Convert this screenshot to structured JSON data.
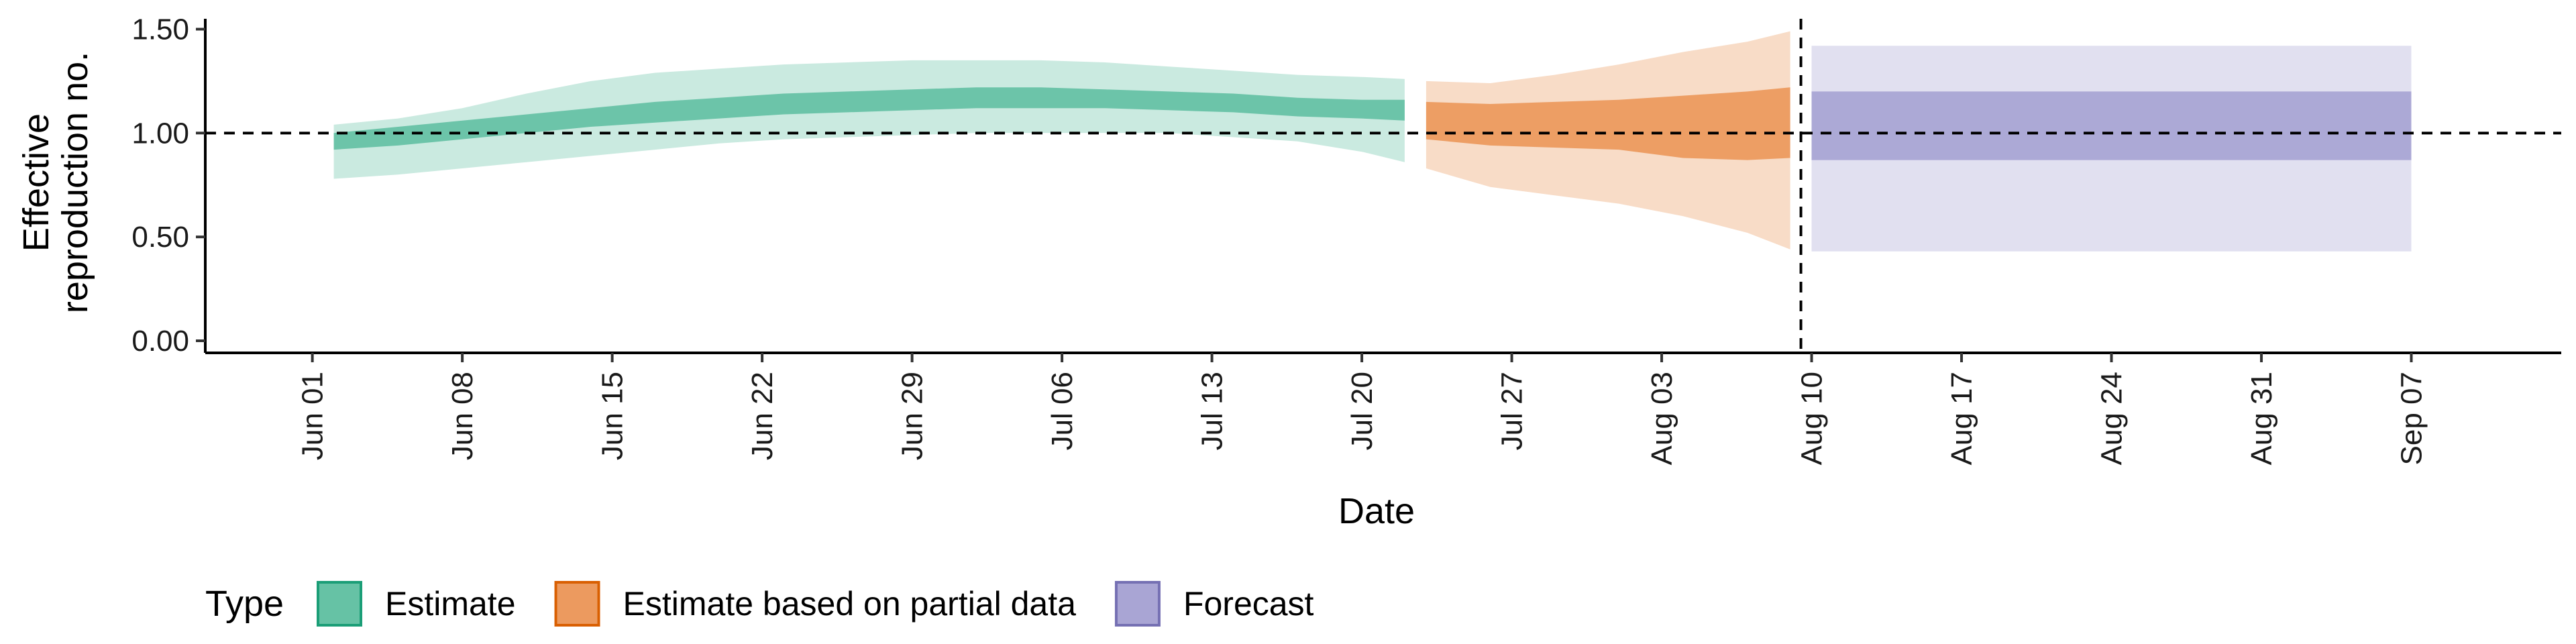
{
  "chart_data": {
    "type": "area",
    "xlabel": "Date",
    "ylabel_lines": [
      "Effective",
      "reproduction no."
    ],
    "ylim": [
      0,
      1.55
    ],
    "yticks": [
      0.0,
      0.5,
      1.0,
      1.5
    ],
    "ytick_labels": [
      "0.00",
      "0.50",
      "1.00",
      "1.50"
    ],
    "xlim": [
      "2020-05-27",
      "2020-09-14"
    ],
    "xtick_labels": [
      "Jun 01",
      "Jun 08",
      "Jun 15",
      "Jun 22",
      "Jun 29",
      "Jul 06",
      "Jul 13",
      "Jul 20",
      "Jul 27",
      "Aug 03",
      "Aug 10",
      "Aug 17",
      "Aug 24",
      "Aug 31",
      "Sep 07"
    ],
    "xtick_dates": [
      "2020-06-01",
      "2020-06-08",
      "2020-06-15",
      "2020-06-22",
      "2020-06-29",
      "2020-07-06",
      "2020-07-13",
      "2020-07-20",
      "2020-07-27",
      "2020-08-03",
      "2020-08-10",
      "2020-08-17",
      "2020-08-24",
      "2020-08-31",
      "2020-09-07"
    ],
    "reference_line": {
      "y": 1.0,
      "style": "dashed"
    },
    "forecast_divider": {
      "x": "2020-08-09",
      "style": "dashed"
    },
    "legend": {
      "title": "Type",
      "position": "bottom"
    },
    "grid": false,
    "series": [
      {
        "name": "Estimate",
        "color": "#1b9e77",
        "fill": "#66c2a5",
        "x": [
          "2020-06-02",
          "2020-06-05",
          "2020-06-08",
          "2020-06-11",
          "2020-06-14",
          "2020-06-17",
          "2020-06-20",
          "2020-06-23",
          "2020-06-26",
          "2020-06-29",
          "2020-07-02",
          "2020-07-05",
          "2020-07-08",
          "2020-07-11",
          "2020-07-14",
          "2020-07-17",
          "2020-07-20",
          "2020-07-22"
        ],
        "lower_90": [
          0.78,
          0.8,
          0.83,
          0.86,
          0.89,
          0.92,
          0.95,
          0.97,
          0.98,
          0.99,
          1.0,
          1.0,
          1.0,
          1.0,
          0.98,
          0.96,
          0.91,
          0.86
        ],
        "upper_90": [
          1.04,
          1.07,
          1.12,
          1.19,
          1.25,
          1.29,
          1.31,
          1.33,
          1.34,
          1.35,
          1.35,
          1.35,
          1.34,
          1.32,
          1.3,
          1.28,
          1.27,
          1.26
        ],
        "lower_50": [
          0.92,
          0.94,
          0.97,
          1.0,
          1.03,
          1.05,
          1.07,
          1.09,
          1.1,
          1.11,
          1.12,
          1.12,
          1.12,
          1.11,
          1.1,
          1.08,
          1.07,
          1.06
        ],
        "upper_50": [
          1.0,
          1.03,
          1.06,
          1.09,
          1.12,
          1.15,
          1.17,
          1.19,
          1.2,
          1.21,
          1.22,
          1.22,
          1.21,
          1.2,
          1.19,
          1.17,
          1.16,
          1.16
        ]
      },
      {
        "name": "Estimate based on partial data",
        "color": "#d95f02",
        "fill": "#ec9a5f",
        "x": [
          "2020-07-23",
          "2020-07-26",
          "2020-07-29",
          "2020-08-01",
          "2020-08-04",
          "2020-08-07",
          "2020-08-09"
        ],
        "lower_90": [
          0.83,
          0.74,
          0.7,
          0.66,
          0.6,
          0.52,
          0.44
        ],
        "upper_90": [
          1.25,
          1.24,
          1.28,
          1.33,
          1.39,
          1.44,
          1.49
        ],
        "lower_50": [
          0.97,
          0.94,
          0.93,
          0.92,
          0.88,
          0.87,
          0.88
        ],
        "upper_50": [
          1.15,
          1.14,
          1.15,
          1.16,
          1.18,
          1.2,
          1.22
        ]
      },
      {
        "name": "Forecast",
        "color": "#7570b3",
        "fill": "#a9a5d4",
        "x": [
          "2020-08-10",
          "2020-09-07"
        ],
        "lower_90": [
          0.43,
          0.43
        ],
        "upper_90": [
          1.42,
          1.42
        ],
        "lower_50": [
          0.87,
          0.87
        ],
        "upper_50": [
          1.2,
          1.2
        ]
      }
    ]
  }
}
